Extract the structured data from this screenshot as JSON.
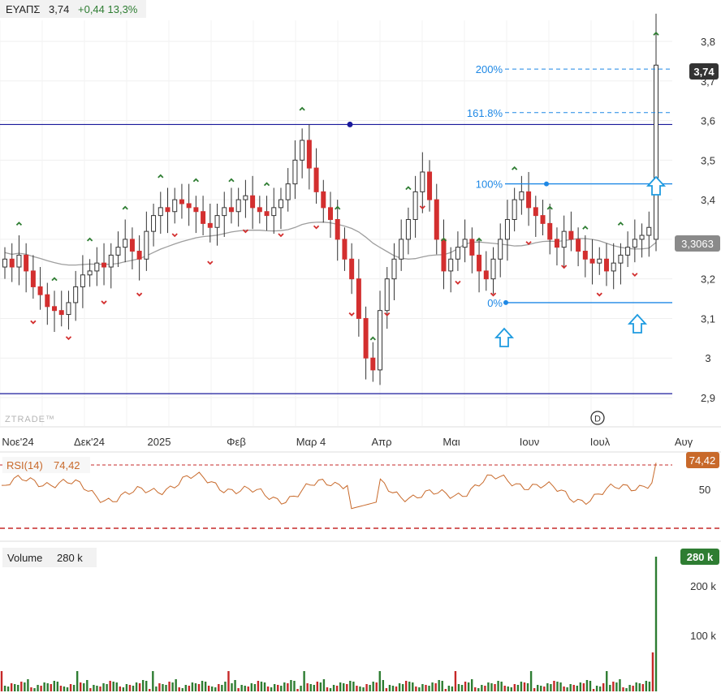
{
  "header": {
    "symbol": "ΕΥΑΠΣ",
    "price": "3,74",
    "change": "+0,44 13,3%"
  },
  "watermark": "ZTRADE™",
  "colors": {
    "up": "#2e7d32",
    "down": "#d32f2f",
    "fib": "#1e88e5",
    "level": "#1a1a9c",
    "ma": "#9e9e9e",
    "rsi": "#c8692a",
    "rsiGuide": "#c62828",
    "volumeUp": "#2e7d32",
    "volumeDown": "#c62828"
  },
  "icons": {
    "dividend": "circled-d-icon",
    "signal": "up-arrow-icon"
  },
  "price_panel": {
    "y_ticks": [
      "3,8",
      "3,7",
      "3,6",
      "3,5",
      "3,4",
      "3,3",
      "3,2",
      "3,1",
      "3",
      "2,9"
    ],
    "last_price_label": "3,74",
    "ma_label": "3,3063",
    "fib_levels": [
      {
        "label": "200%",
        "value": 3.73
      },
      {
        "label": "161.8%",
        "value": 3.62
      },
      {
        "label": "100%",
        "value": 3.44
      },
      {
        "label": "0%",
        "value": 3.14
      }
    ],
    "horizontal_levels": [
      3.59,
      2.91
    ]
  },
  "x_ticks": [
    "Νοε'24",
    "Δεκ'24",
    "2025",
    "Φεβ",
    "Μαρ 4",
    "Απρ",
    "Μαι",
    "Ιουν",
    "Ιουλ",
    "Αυγ"
  ],
  "rsi_panel": {
    "label": "RSI(14)",
    "value": "74,42",
    "tick": "50",
    "upper": 70,
    "lower": 30
  },
  "volume_panel": {
    "label": "Volume",
    "value": "280 k",
    "last_label": "280 k",
    "ticks": [
      "200 k",
      "100 k"
    ]
  },
  "chart_data": {
    "type": "candlestick",
    "title": "ΕΥΑΠΣ",
    "price_range": [
      2.88,
      3.83
    ],
    "last_close": 3.74,
    "moving_average_last": 3.3063,
    "series_close_approx": [
      3.25,
      3.23,
      3.26,
      3.22,
      3.18,
      3.16,
      3.13,
      3.12,
      3.11,
      3.14,
      3.18,
      3.21,
      3.22,
      3.24,
      3.23,
      3.26,
      3.28,
      3.3,
      3.27,
      3.25,
      3.32,
      3.36,
      3.38,
      3.37,
      3.4,
      3.39,
      3.38,
      3.37,
      3.34,
      3.33,
      3.36,
      3.38,
      3.37,
      3.4,
      3.41,
      3.38,
      3.37,
      3.36,
      3.38,
      3.4,
      3.44,
      3.5,
      3.55,
      3.48,
      3.42,
      3.38,
      3.35,
      3.3,
      3.25,
      3.2,
      3.1,
      3.0,
      2.97,
      3.12,
      3.2,
      3.25,
      3.3,
      3.35,
      3.42,
      3.47,
      3.4,
      3.3,
      3.22,
      3.25,
      3.28,
      3.3,
      3.26,
      3.22,
      3.2,
      3.25,
      3.3,
      3.35,
      3.4,
      3.42,
      3.38,
      3.36,
      3.34,
      3.3,
      3.28,
      3.32,
      3.3,
      3.27,
      3.25,
      3.24,
      3.25,
      3.22,
      3.24,
      3.26,
      3.28,
      3.3,
      3.31,
      3.33,
      3.74
    ],
    "rsi_last": 74.42,
    "volume_last_k": 280
  }
}
